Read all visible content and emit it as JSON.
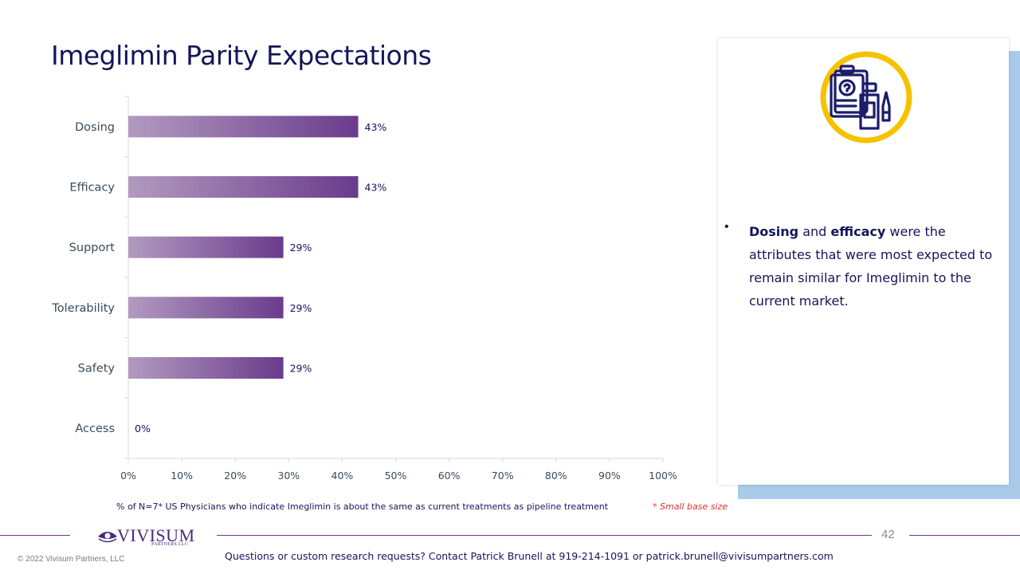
{
  "title": "Imeglimin Parity Expectations",
  "chart_data": {
    "type": "bar",
    "orientation": "horizontal",
    "categories": [
      "Dosing",
      "Efficacy",
      "Support",
      "Tolerability",
      "Safety",
      "Access"
    ],
    "values": [
      43,
      43,
      29,
      29,
      29,
      0
    ],
    "value_labels": [
      "43%",
      "43%",
      "29%",
      "29%",
      "29%",
      "0%"
    ],
    "x_ticks": [
      "0%",
      "10%",
      "20%",
      "30%",
      "40%",
      "50%",
      "60%",
      "70%",
      "80%",
      "90%",
      "100%"
    ],
    "xlim": [
      0,
      100
    ],
    "grid": false,
    "bar_gradient": [
      "#b29ac0",
      "#6a3b8c"
    ]
  },
  "note": "% of N=7* US Physicians who indicate Imeglimin is about the same as current treatments as pipeline treatment",
  "small_base": "* Small base size",
  "finding": {
    "bullet": "•",
    "strong1": "Dosing",
    "text1": " and ",
    "strong2": "efficacy",
    "text2": " were the attributes that were most expected to remain similar for Imeglimin to the current market."
  },
  "logo": {
    "name": "VIVISUM",
    "sub": "PARTNERS LLC"
  },
  "page_number": "42",
  "copyright": "© 2022 Vivisum Partners, LLC",
  "contact": "Questions or custom research requests? Contact Patrick Brunell at 919-214-1091 or patrick.brunell@vivisumpartners.com",
  "colors": {
    "title": "#15155a",
    "accent_ring": "#f5c200",
    "icon": "#1c1c6b",
    "card_shadow": "#a9cbe9",
    "rule": "#6b3a87"
  }
}
